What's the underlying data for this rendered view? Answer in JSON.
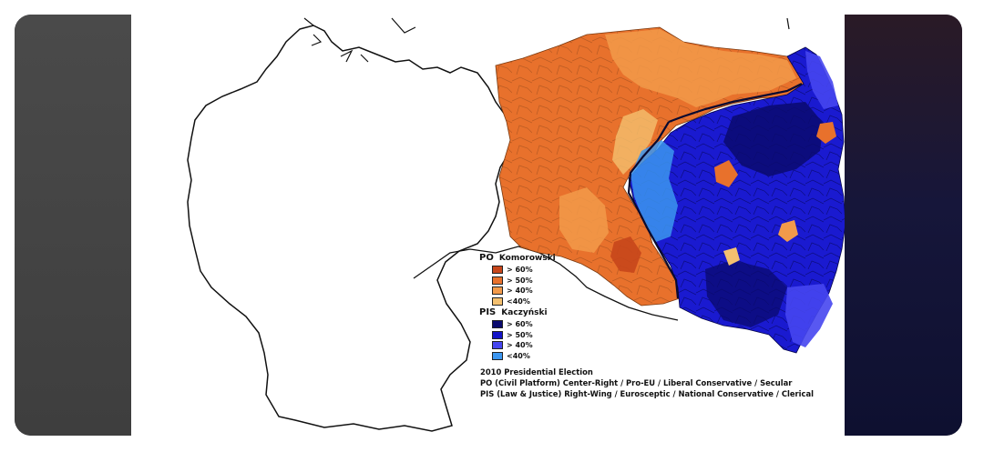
{
  "legend": {
    "groups": [
      {
        "party": "PO",
        "candidate": "Komorowski",
        "rows": [
          {
            "label": "> 60%",
            "color": "#c7461b"
          },
          {
            "label": "> 50%",
            "color": "#e8712c"
          },
          {
            "label": "> 40%",
            "color": "#f29a4a"
          },
          {
            "label": "<40%",
            "color": "#f4c06f"
          }
        ]
      },
      {
        "party": "PIS",
        "candidate": "Kaczyński",
        "rows": [
          {
            "label": "> 60%",
            "color": "#0a0a6e"
          },
          {
            "label": "> 50%",
            "color": "#1414c8"
          },
          {
            "label": "> 40%",
            "color": "#4646f0"
          },
          {
            "label": "<40%",
            "color": "#3c96f0"
          }
        ]
      }
    ]
  },
  "caption": {
    "title": "2010 Presidential Election",
    "line_po": "PO (Civil Platform) Center-Right / Pro-EU / Liberal Conservative / Secular",
    "line_pis": "PIS (Law & Justice) Right-Wing / Eurosceptic / National Conservative / Clerical"
  }
}
